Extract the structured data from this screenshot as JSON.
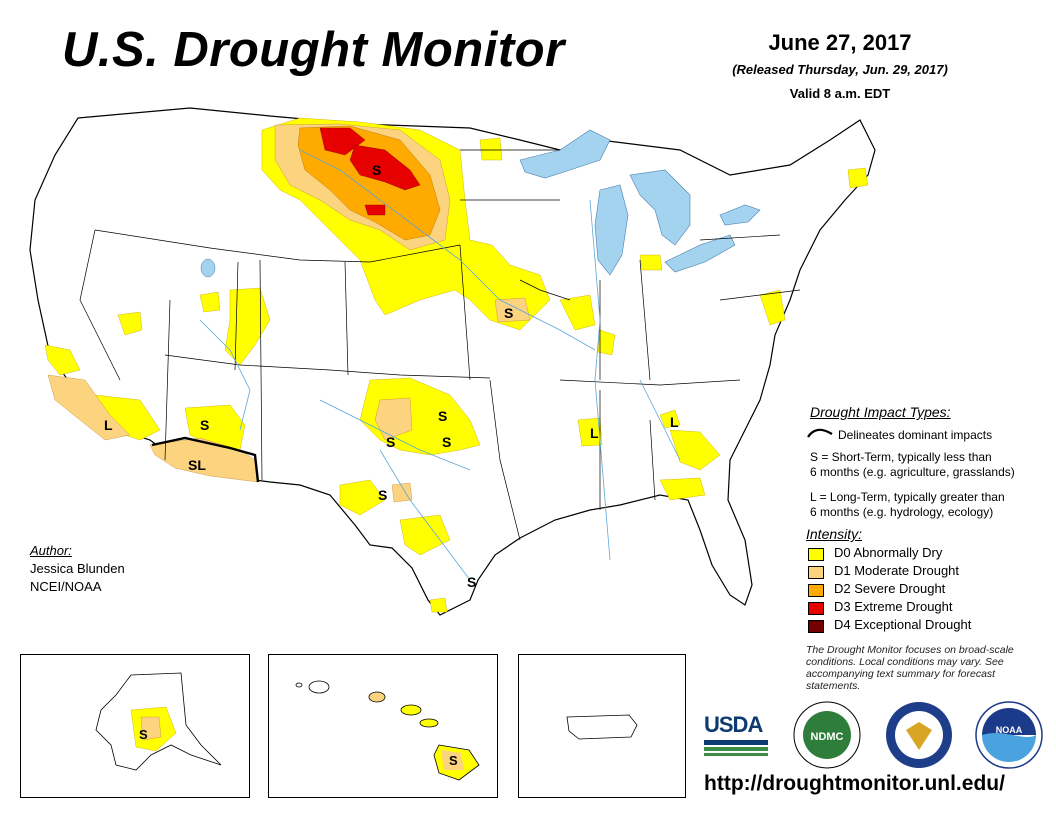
{
  "header": {
    "title": "U.S. Drought Monitor",
    "date": "June 27, 2017",
    "released": "(Released Thursday, Jun. 29, 2017)",
    "valid": "Valid 8 a.m. EDT"
  },
  "impact_legend": {
    "heading": "Drought Impact Types:",
    "dominant_line": "Delineates dominant impacts",
    "short_term_1": "S = Short-Term, typically less than",
    "short_term_2": "6 months (e.g. agriculture, grasslands)",
    "long_term_1": "L = Long-Term, typically greater than",
    "long_term_2": "6 months (e.g. hydrology, ecology)"
  },
  "intensity": {
    "heading": "Intensity:",
    "levels": [
      {
        "label": "D0 Abnormally Dry",
        "color": "#ffff00"
      },
      {
        "label": "D1 Moderate Drought",
        "color": "#fcd37f"
      },
      {
        "label": "D2 Severe Drought",
        "color": "#ffaa00"
      },
      {
        "label": "D3 Extreme Drought",
        "color": "#e60000"
      },
      {
        "label": "D4 Exceptional Drought",
        "color": "#730000"
      }
    ]
  },
  "note": "The Drought Monitor focuses on broad-scale conditions. Local conditions may vary. See accompanying text summary for forecast statements.",
  "author": {
    "heading": "Author:",
    "name": "Jessica Blunden",
    "org": "NCEI/NOAA"
  },
  "map_labels": {
    "s": "S",
    "l": "L",
    "sl": "SL"
  },
  "logos": {
    "usda": "USDA",
    "ndmc": "NDMC",
    "noaa": "NOAA"
  },
  "url": "http://droughtmonitor.unl.edu/",
  "colors": {
    "water": "#a3d3ef",
    "river": "#5ba8d8",
    "boundary": "#000000"
  }
}
